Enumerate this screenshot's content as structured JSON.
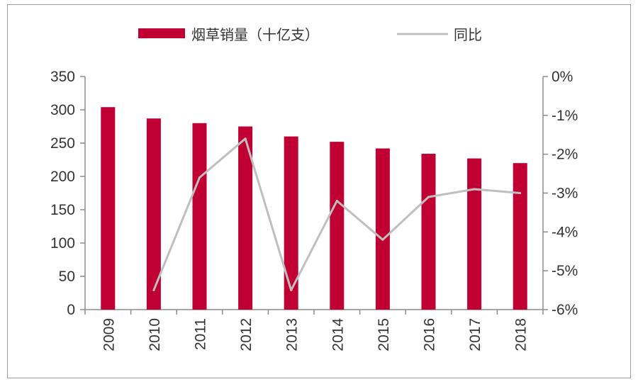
{
  "chart_data": {
    "type": "bar+line",
    "title": "",
    "xlabel": "",
    "ylabel": "",
    "categories": [
      "2009",
      "2010",
      "2011",
      "2012",
      "2013",
      "2014",
      "2015",
      "2016",
      "2017",
      "2018"
    ],
    "series": [
      {
        "name": "烟草销量（十亿支）",
        "type": "bar",
        "axis": "left",
        "color": "#c00032",
        "values": [
          304,
          287,
          280,
          275,
          260,
          252,
          242,
          234,
          227,
          220
        ]
      },
      {
        "name": "同比",
        "type": "line",
        "axis": "right",
        "color": "#bfbfbf",
        "values": [
          null,
          -5.5,
          -2.6,
          -1.6,
          -5.5,
          -3.2,
          -4.2,
          -3.1,
          -2.9,
          -3.0
        ]
      }
    ],
    "ylim_left": [
      0,
      350
    ],
    "yticks_left": [
      "0",
      "50",
      "100",
      "150",
      "200",
      "250",
      "300",
      "350"
    ],
    "ylim_right": [
      -6,
      0
    ],
    "yticks_right": [
      "-6%",
      "-5%",
      "-4%",
      "-3%",
      "-2%",
      "-1%",
      "0%"
    ],
    "grid": false,
    "legend_position": "top"
  }
}
